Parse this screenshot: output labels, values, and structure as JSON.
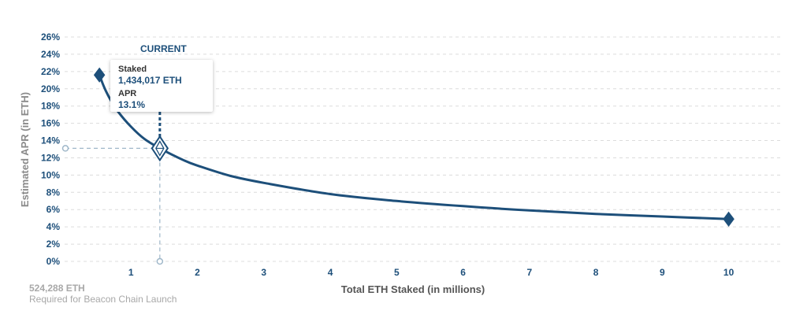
{
  "chart_data": {
    "type": "line",
    "xlabel": "Total ETH Staked  (in millions)",
    "ylabel": "Estimated APR (in ETH)",
    "xlim": [
      0,
      10.8
    ],
    "ylim": [
      0,
      26
    ],
    "x_ticks": [
      "1",
      "2",
      "3",
      "4",
      "5",
      "6",
      "7",
      "8",
      "9",
      "10"
    ],
    "y_ticks": [
      "0%",
      "2%",
      "4%",
      "6%",
      "8%",
      "10%",
      "12%",
      "14%",
      "16%",
      "18%",
      "20%",
      "22%",
      "24%",
      "26%"
    ],
    "grid": true,
    "series": [
      {
        "x": [
          0.524,
          0.6,
          0.7,
          0.8,
          1.0,
          1.2,
          1.434,
          1.8,
          2.0,
          2.5,
          3.0,
          4.0,
          5.0,
          6.0,
          7.0,
          8.0,
          9.0,
          10.0
        ],
        "y": [
          21.6,
          20.1,
          18.6,
          17.4,
          15.6,
          14.2,
          13.1,
          11.7,
          11.1,
          9.9,
          9.1,
          7.8,
          7.0,
          6.4,
          5.9,
          5.5,
          5.2,
          4.9
        ],
        "color": "#1d4f7a"
      }
    ],
    "markers": {
      "start": {
        "x": 0.524,
        "y": 21.6
      },
      "current": {
        "x": 1.434,
        "y": 13.1
      },
      "end": {
        "x": 10.0,
        "y": 4.9
      }
    }
  },
  "current_label": "CURRENT",
  "tooltip": {
    "staked_label": "Staked",
    "staked_value": "1,434,017 ETH",
    "apr_label": "APR",
    "apr_value": "13.1%"
  },
  "launch_note": {
    "amount": "524,288 ETH",
    "text": "Required for Beacon Chain Launch"
  },
  "colors": {
    "line": "#1d4f7a",
    "guide": "#9fb7c9",
    "grid": "#dcdcdc"
  }
}
